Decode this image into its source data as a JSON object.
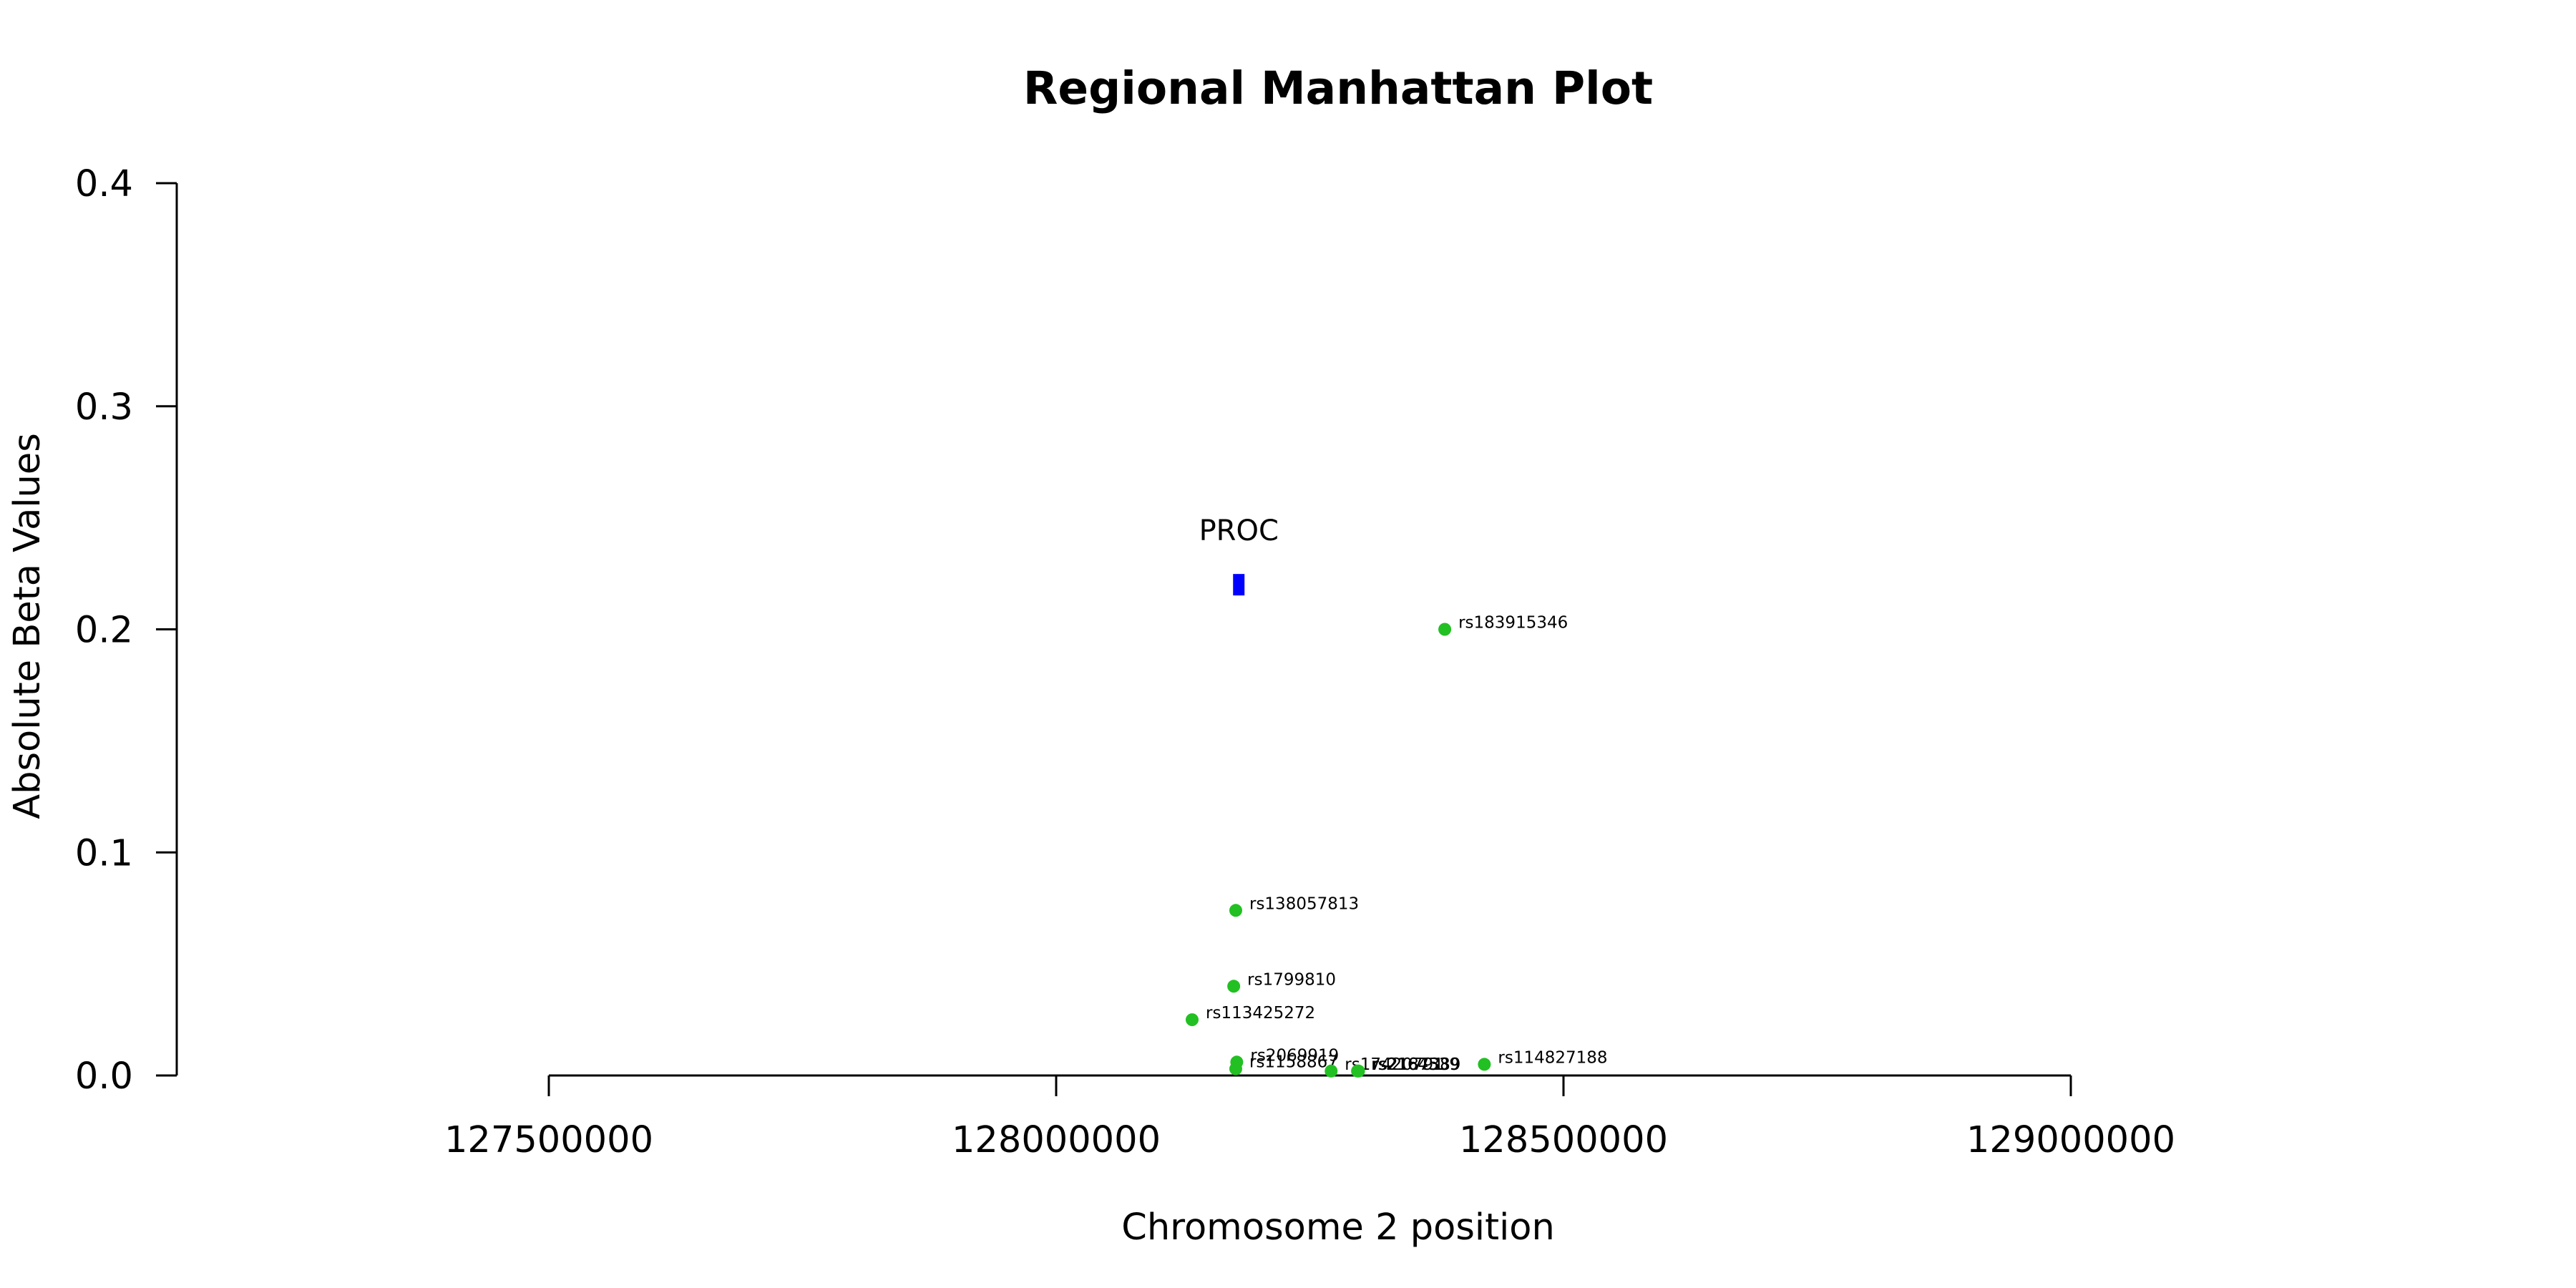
{
  "chart_data": {
    "type": "scatter",
    "title": "Regional Manhattan Plot",
    "xlabel": "Chromosome 2 position",
    "ylabel": "Absolute Beta Values",
    "xlim": [
      127500000,
      129000000
    ],
    "ylim": [
      0,
      0.4
    ],
    "x_ticks": [
      127500000,
      128000000,
      128500000,
      129000000
    ],
    "y_ticks": [
      0.0,
      0.1,
      0.2,
      0.3,
      0.4
    ],
    "x_tick_labels": [
      "127500000",
      "128000000",
      "128500000",
      "129000000"
    ],
    "y_tick_labels": [
      "0.0",
      "0.1",
      "0.2",
      "0.3",
      "0.4"
    ],
    "grid": false,
    "colors": {
      "snp": "#22c022",
      "gene": "#0000ff",
      "axis": "#000000"
    },
    "gene": {
      "name": "PROC",
      "x": 128180000,
      "y": 0.22
    },
    "points": [
      {
        "label": "rs183915346",
        "x": 128383000,
        "y": 0.2
      },
      {
        "label": "rs138057813",
        "x": 128177000,
        "y": 0.074
      },
      {
        "label": "rs1799810",
        "x": 128175000,
        "y": 0.04
      },
      {
        "label": "rs113425272",
        "x": 128134000,
        "y": 0.025
      },
      {
        "label": "rs2069919",
        "x": 128178000,
        "y": 0.006
      },
      {
        "label": "rs1158867",
        "x": 128177000,
        "y": 0.003
      },
      {
        "label": "rs114827188",
        "x": 128422000,
        "y": 0.005
      },
      {
        "label": "rs17420791",
        "x": 128271000,
        "y": 0.002
      },
      {
        "label": "rs2164539",
        "x": 128297000,
        "y": 0.002
      },
      {
        "label": "rs2187389",
        "x": 128298000,
        "y": 0.002
      }
    ]
  }
}
